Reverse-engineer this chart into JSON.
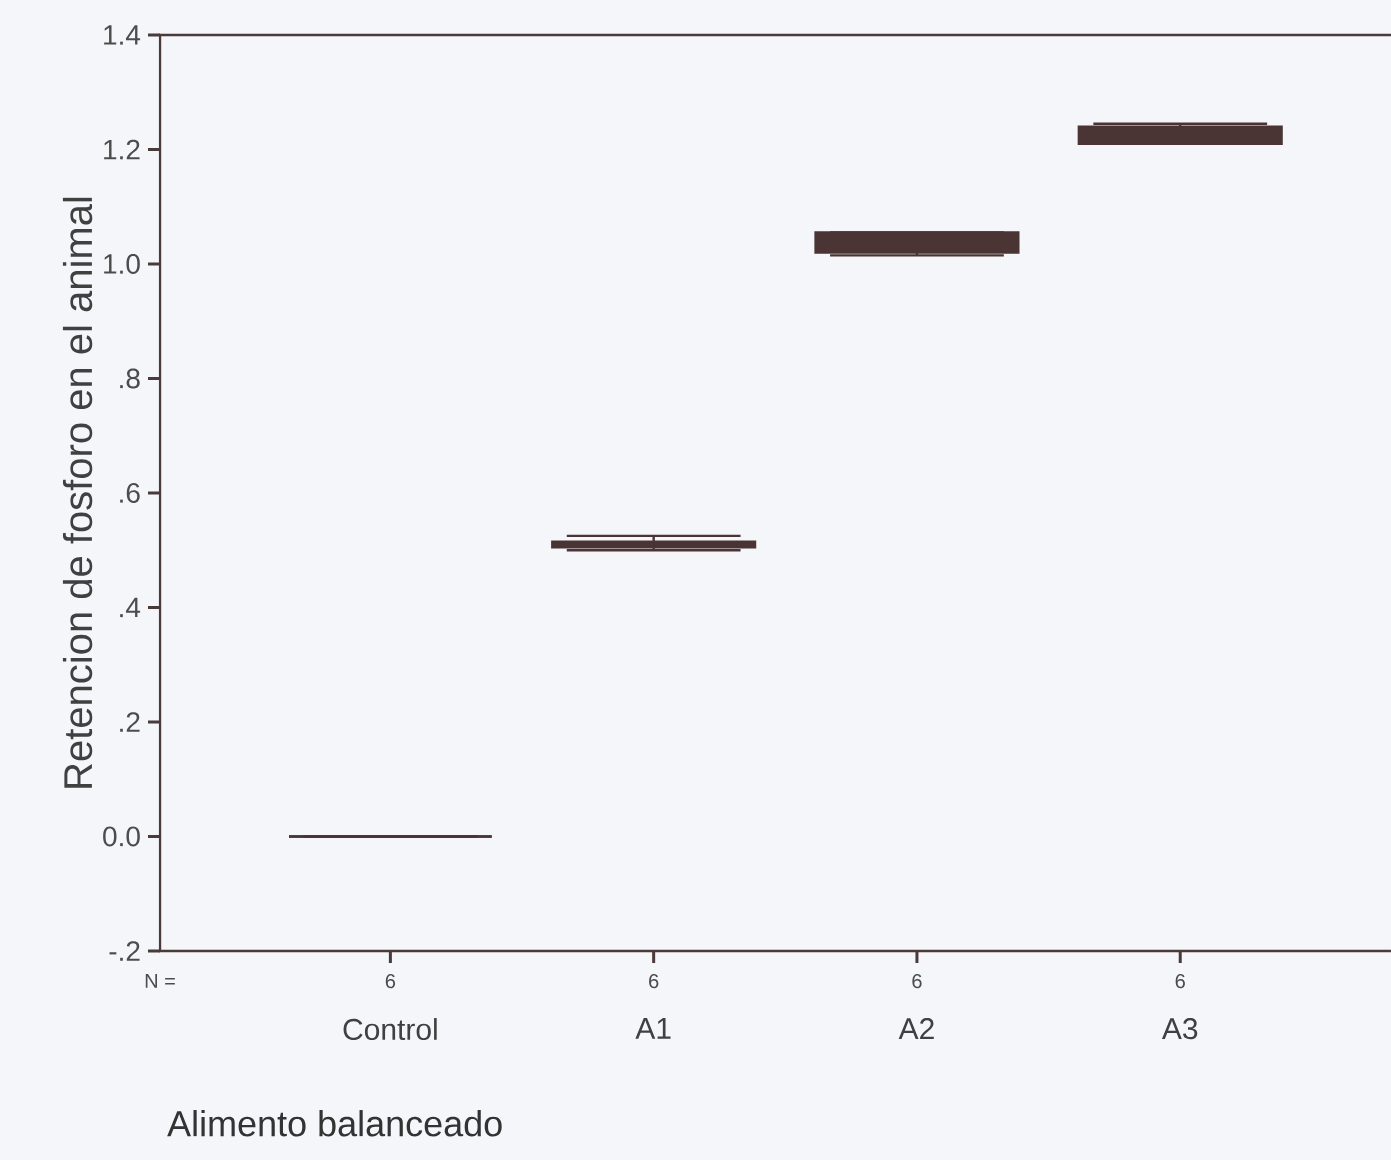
{
  "chart_data": {
    "type": "box",
    "xlabel": "Alimento balanceado",
    "ylabel": "Retencion de fosforo en el animal",
    "categories": [
      "Control",
      "A1",
      "A2",
      "A3"
    ],
    "boxes": [
      {
        "low": 0,
        "q1": 0,
        "median": 0,
        "q3": 0,
        "high": 0
      },
      {
        "low": 0.5,
        "q1": 0.505,
        "median": 0.51,
        "q3": 0.515,
        "high": 0.525
      },
      {
        "low": 1.015,
        "q1": 1.02,
        "median": 1.04,
        "q3": 1.055,
        "high": 1.055
      },
      {
        "low": 1.21,
        "q1": 1.21,
        "median": 1.225,
        "q3": 1.24,
        "high": 1.245
      }
    ],
    "color": "#4a3434",
    "ylim": [
      -0.2,
      1.4
    ],
    "yticks": [
      {
        "value": -0.2,
        "label": "-.2"
      },
      {
        "value": 0,
        "label": "0.0"
      },
      {
        "value": 0.2,
        "label": ".2"
      },
      {
        "value": 0.4,
        "label": ".4"
      },
      {
        "value": 0.6,
        "label": ".6"
      },
      {
        "value": 0.8,
        "label": ".8"
      },
      {
        "value": 1.0,
        "label": "1.0"
      },
      {
        "value": 1.2,
        "label": "1.2"
      },
      {
        "value": 1.4,
        "label": "1.4"
      }
    ],
    "annotations": [
      "N =",
      "6",
      "6",
      "6",
      "6"
    ]
  }
}
